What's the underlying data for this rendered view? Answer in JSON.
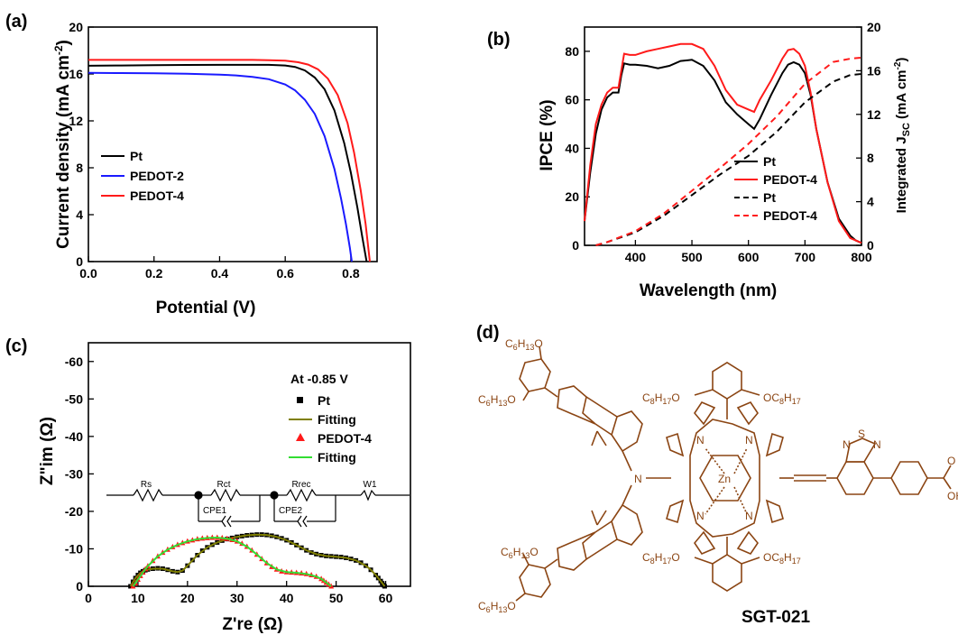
{
  "panels": [
    "(a)",
    "(b)",
    "(c)",
    "(d)"
  ],
  "compound_label": "SGT-021",
  "colors": {
    "pt": "#000000",
    "pedot2": "#1a1aff",
    "pedot4": "#ff1a1a",
    "fit_pt": "#7f7f00",
    "fit_pedot4": "#33dd33",
    "molecule": "#8B4513"
  },
  "chart_data": [
    {
      "id": "a",
      "type": "line",
      "xlabel": "Potential (V)",
      "ylabel": "Current density (mA cm",
      "ylabel_sup": "-2",
      "ylabel_close": ")",
      "xlim": [
        0.0,
        0.88
      ],
      "ylim": [
        0,
        20
      ],
      "xticks": [
        "0.0",
        "0.2",
        "0.4",
        "0.6",
        "0.8"
      ],
      "yticks": [
        "0",
        "4",
        "8",
        "12",
        "16",
        "20"
      ],
      "legend_position": "middle-left",
      "series": [
        {
          "name": "Pt",
          "color_key": "pt",
          "x": [
            0.0,
            0.1,
            0.2,
            0.3,
            0.4,
            0.5,
            0.55,
            0.6,
            0.63,
            0.66,
            0.69,
            0.72,
            0.75,
            0.78,
            0.8,
            0.82,
            0.835,
            0.848
          ],
          "y": [
            16.7,
            16.72,
            16.75,
            16.77,
            16.78,
            16.78,
            16.78,
            16.72,
            16.6,
            16.3,
            15.7,
            14.7,
            12.9,
            10.1,
            7.6,
            4.6,
            2.1,
            0
          ]
        },
        {
          "name": "PEDOT-2",
          "color_key": "pedot2",
          "x": [
            0.0,
            0.1,
            0.2,
            0.3,
            0.4,
            0.45,
            0.5,
            0.55,
            0.6,
            0.63,
            0.66,
            0.69,
            0.72,
            0.75,
            0.77,
            0.785,
            0.797,
            0.803
          ],
          "y": [
            16.1,
            16.08,
            16.05,
            16.02,
            15.95,
            15.88,
            15.75,
            15.55,
            15.1,
            14.6,
            13.8,
            12.6,
            10.7,
            7.9,
            5.4,
            3.2,
            1.2,
            0
          ]
        },
        {
          "name": "PEDOT-4",
          "color_key": "pedot4",
          "x": [
            0.0,
            0.1,
            0.2,
            0.3,
            0.4,
            0.5,
            0.55,
            0.6,
            0.64,
            0.67,
            0.7,
            0.73,
            0.76,
            0.79,
            0.81,
            0.83,
            0.845,
            0.858
          ],
          "y": [
            17.2,
            17.2,
            17.2,
            17.2,
            17.2,
            17.2,
            17.18,
            17.13,
            17.0,
            16.8,
            16.4,
            15.6,
            14.2,
            11.8,
            9.3,
            6.1,
            3.2,
            0
          ]
        }
      ]
    },
    {
      "id": "b",
      "type": "line",
      "xlabel": "Wavelength (nm)",
      "ylabel": "IPCE (%)",
      "ylabel_right": "Integrated J",
      "ylabel_right_sub": "SC",
      "ylabel_right_unit": " (mA cm",
      "ylabel_right_sup": "-2",
      "ylabel_right_close": ")",
      "xlim": [
        310,
        800
      ],
      "ylim": [
        0,
        90
      ],
      "ylim_right": [
        0,
        20
      ],
      "xticks": [
        "400",
        "500",
        "600",
        "700",
        "800"
      ],
      "yticks": [
        "0",
        "20",
        "40",
        "60",
        "80"
      ],
      "yticks_right": [
        "0",
        "4",
        "8",
        "12",
        "16",
        "20"
      ],
      "legend_position": "bottom-right",
      "series": [
        {
          "name": "Pt",
          "color_key": "pt",
          "dash": false,
          "axis": "left",
          "x": [
            310,
            320,
            330,
            340,
            350,
            360,
            370,
            375,
            380,
            390,
            400,
            420,
            440,
            460,
            480,
            500,
            520,
            540,
            560,
            580,
            600,
            610,
            620,
            640,
            660,
            670,
            680,
            690,
            700,
            710,
            720,
            740,
            760,
            780,
            790,
            800
          ],
          "y": [
            10,
            30,
            46,
            56,
            61,
            63,
            63,
            70,
            75,
            74.5,
            74.5,
            74,
            73,
            74,
            76,
            76.5,
            74,
            68,
            59,
            54,
            50,
            48,
            52,
            62,
            71,
            74.5,
            75.5,
            74.5,
            71,
            62,
            48,
            26,
            11,
            4,
            2,
            1
          ]
        },
        {
          "name": "PEDOT-4",
          "color_key": "pedot4",
          "dash": false,
          "axis": "left",
          "x": [
            310,
            320,
            330,
            340,
            350,
            360,
            370,
            375,
            380,
            390,
            400,
            420,
            440,
            460,
            480,
            500,
            520,
            540,
            560,
            580,
            600,
            610,
            620,
            640,
            660,
            670,
            680,
            690,
            700,
            710,
            720,
            740,
            760,
            780,
            790,
            800
          ],
          "y": [
            10,
            33,
            50,
            58,
            63,
            65,
            65,
            72,
            79,
            78.5,
            78.5,
            80,
            81,
            82,
            83,
            83,
            81,
            74,
            64,
            58,
            56,
            55,
            60,
            68,
            77,
            80.5,
            81,
            79,
            74,
            63,
            48,
            26,
            10,
            3,
            2,
            1
          ]
        },
        {
          "name": "Pt",
          "color_key": "pt",
          "dash": true,
          "axis": "right",
          "x": [
            330,
            350,
            400,
            450,
            500,
            550,
            600,
            650,
            700,
            750,
            780,
            800
          ],
          "y": [
            0,
            0.3,
            1.2,
            2.7,
            4.6,
            6.5,
            8.2,
            10.4,
            13.1,
            15.0,
            15.6,
            15.7
          ]
        },
        {
          "name": "PEDOT-4",
          "color_key": "pedot4",
          "dash": true,
          "axis": "right",
          "x": [
            330,
            350,
            400,
            450,
            500,
            550,
            600,
            650,
            700,
            750,
            780,
            800
          ],
          "y": [
            0,
            0.3,
            1.3,
            2.9,
            5.0,
            7.1,
            9.3,
            11.8,
            14.8,
            16.8,
            17.1,
            17.2
          ]
        }
      ]
    },
    {
      "id": "c",
      "type": "scatter",
      "xlabel": "Z're (Ω)",
      "ylabel": "Z\"im (Ω)",
      "xlim": [
        0,
        65
      ],
      "ylim": [
        0,
        -65
      ],
      "xticks": [
        "0",
        "10",
        "20",
        "30",
        "40",
        "50",
        "60"
      ],
      "yticks": [
        "0",
        "-10",
        "-20",
        "-30",
        "-40",
        "-50",
        "-60"
      ],
      "annotation": "At -0.85 V",
      "legend_position": "top-right",
      "circuit_labels": [
        "Rs",
        "Rct",
        "Rrec",
        "W1",
        "CPE1",
        "CPE2"
      ],
      "series": [
        {
          "name": "Pt",
          "color_key": "pt",
          "marker": "square",
          "x": [
            8.5,
            9,
            9.5,
            10,
            10.5,
            11,
            11.5,
            12,
            13,
            14,
            15,
            16,
            17,
            18,
            19,
            20,
            21,
            22,
            23,
            24,
            25,
            26,
            27,
            28,
            29,
            30,
            31,
            32,
            33,
            34,
            35,
            36,
            37,
            38,
            39,
            40,
            41,
            42,
            43,
            44,
            45,
            46,
            47,
            48,
            49,
            50,
            51,
            52,
            53,
            54,
            55,
            56,
            57,
            58,
            58.5,
            59,
            59.3,
            59.6,
            59.8
          ],
          "y": [
            0,
            -1.2,
            -2.2,
            -3.0,
            -3.6,
            -4.0,
            -4.3,
            -4.5,
            -4.7,
            -4.8,
            -4.7,
            -4.4,
            -4.0,
            -3.8,
            -4.2,
            -5.5,
            -7.0,
            -8.3,
            -9.5,
            -10.4,
            -11.1,
            -11.7,
            -12.2,
            -12.6,
            -12.9,
            -13.2,
            -13.4,
            -13.6,
            -13.7,
            -13.8,
            -13.8,
            -13.7,
            -13.5,
            -13.2,
            -12.8,
            -12.3,
            -11.7,
            -11.0,
            -10.3,
            -9.6,
            -9.0,
            -8.6,
            -8.3,
            -8.1,
            -8.0,
            -7.9,
            -7.8,
            -7.6,
            -7.3,
            -6.9,
            -6.3,
            -5.5,
            -4.4,
            -3.0,
            -2.2,
            -1.4,
            -0.8,
            -0.3,
            0
          ]
        },
        {
          "name": "Fitting",
          "color_key": "fit_pt",
          "marker": "line",
          "x": [
            8.5,
            9.5,
            10.5,
            11.5,
            13,
            15,
            17,
            18,
            19,
            20,
            22,
            24,
            26,
            28,
            30,
            32,
            34,
            36,
            38,
            40,
            42,
            44,
            46,
            48,
            50,
            52,
            54,
            56,
            57,
            58,
            59,
            59.8
          ],
          "y": [
            0,
            -2.2,
            -3.6,
            -4.3,
            -4.7,
            -4.7,
            -4.0,
            -3.8,
            -4.2,
            -5.5,
            -8.3,
            -10.4,
            -11.7,
            -12.6,
            -13.2,
            -13.6,
            -13.8,
            -13.7,
            -13.2,
            -12.3,
            -11.0,
            -9.6,
            -8.6,
            -8.1,
            -7.9,
            -7.6,
            -6.9,
            -5.5,
            -4.4,
            -3.0,
            -1.4,
            0
          ]
        },
        {
          "name": "PEDOT-4",
          "color_key": "pedot4",
          "marker": "triangle",
          "x": [
            9,
            9.5,
            10,
            10.5,
            11,
            11.5,
            12,
            13,
            14,
            15,
            16,
            17,
            18,
            19,
            20,
            21,
            22,
            23,
            24,
            25,
            26,
            27,
            28,
            29,
            30,
            31,
            32,
            33,
            34,
            35,
            36,
            37,
            38,
            39,
            40,
            41,
            42,
            43,
            44,
            45,
            46,
            47,
            47.5,
            48,
            48.5,
            49
          ],
          "y": [
            0,
            -0.8,
            -1.8,
            -2.8,
            -3.7,
            -4.6,
            -5.4,
            -6.8,
            -8.0,
            -9.0,
            -9.8,
            -10.5,
            -11.1,
            -11.6,
            -12.0,
            -12.3,
            -12.6,
            -12.8,
            -12.9,
            -13.0,
            -13.0,
            -12.9,
            -12.7,
            -12.4,
            -12.0,
            -11.4,
            -10.6,
            -9.6,
            -8.5,
            -7.3,
            -6.2,
            -5.2,
            -4.5,
            -4.0,
            -3.8,
            -3.7,
            -3.6,
            -3.5,
            -3.3,
            -3.0,
            -2.6,
            -2.0,
            -1.5,
            -1.0,
            -0.5,
            0
          ]
        },
        {
          "name": "Fitting",
          "color_key": "fit_pedot4",
          "marker": "line",
          "x": [
            9,
            10,
            11,
            12,
            14,
            16,
            18,
            20,
            22,
            24,
            26,
            28,
            30,
            32,
            34,
            36,
            38,
            40,
            42,
            44,
            46,
            47,
            48,
            49
          ],
          "y": [
            0,
            -1.8,
            -3.7,
            -5.4,
            -8.0,
            -9.8,
            -11.1,
            -12.0,
            -12.6,
            -12.9,
            -13.0,
            -12.7,
            -12.0,
            -10.6,
            -8.5,
            -6.2,
            -4.5,
            -3.8,
            -3.6,
            -3.3,
            -2.6,
            -2.0,
            -1.0,
            0
          ]
        }
      ]
    }
  ]
}
